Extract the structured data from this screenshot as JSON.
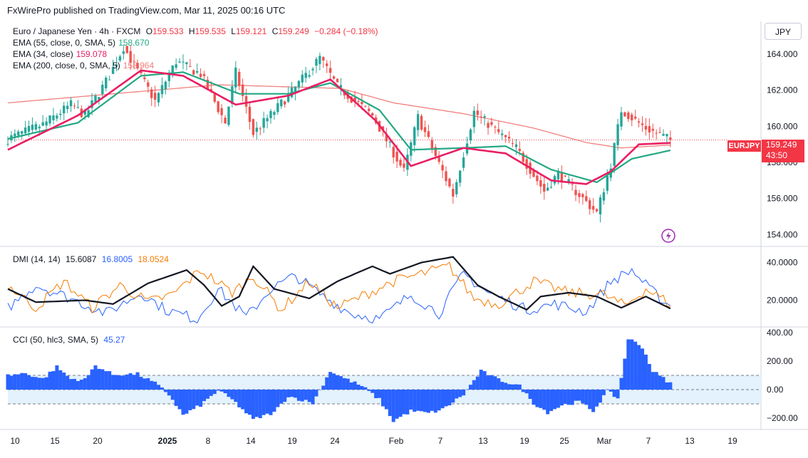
{
  "header": {
    "published": "FxWirePro published on TradingView.com, Mar 11, 2025 00:16 UTC"
  },
  "currency": "JPY",
  "legend": {
    "instrument": "Euro / Japanese Yen · 4h · FXCM",
    "o_label": "O",
    "o": "159.533",
    "h_label": "H",
    "h": "159.535",
    "l_label": "L",
    "l": "159.121",
    "c_label": "C",
    "c": "159.249",
    "change": "−0.284 (−0.18%)",
    "ema55_label": "EMA (55, close, 0, SMA, 5)",
    "ema55": "158.670",
    "ema34_label": "EMA (34, close)",
    "ema34": "159.078",
    "ema200_label": "EMA (200, close, 0, SMA, 5)",
    "ema200": "158.964",
    "dmi_label": "DMI (14, 14)",
    "dmi_adx": "15.6087",
    "dmi_plus": "16.8005",
    "dmi_minus": "18.0524",
    "cci_label": "CCI (50, hlc3, SMA, 5)",
    "cci": "45.27"
  },
  "price_tag": {
    "symbol": "EURJPY",
    "price": "159.249",
    "countdown": "43:50"
  },
  "colors": {
    "up": "#26a69a",
    "down": "#ef5350",
    "ema34": "#e91e63",
    "ema55": "#22a883",
    "ema200": "#f0807d",
    "adx": "#131722",
    "plus_di": "#2962ff",
    "minus_di": "#f57c00",
    "cci": "#2962ff",
    "band": "#e3f2fd"
  },
  "chart_data": [
    {
      "type": "candlestick",
      "title": "Euro / Japanese Yen · 4h · FXCM",
      "ylim": [
        153.5,
        165.5
      ],
      "yticks": [
        "164.000",
        "162.000",
        "160.000",
        "158.000",
        "156.000",
        "154.000"
      ],
      "xticks": [
        "10",
        "15",
        "20",
        "2025",
        "8",
        "14",
        "19",
        "24",
        "Feb",
        "7",
        "13",
        "19",
        "25",
        "Mar",
        "7",
        "13",
        "19"
      ],
      "last": 159.249,
      "anchors": [
        [
          0,
          159.3
        ],
        [
          10,
          160.1
        ],
        [
          18,
          161.2
        ],
        [
          22,
          160.6
        ],
        [
          29,
          162.8
        ],
        [
          33,
          164.4
        ],
        [
          42,
          161.4
        ],
        [
          48,
          163.6
        ],
        [
          55,
          162.9
        ],
        [
          62,
          160.2
        ],
        [
          65,
          163.0
        ],
        [
          70,
          159.6
        ],
        [
          81,
          161.9
        ],
        [
          89,
          163.8
        ],
        [
          94,
          162.2
        ],
        [
          104,
          160.6
        ],
        [
          113,
          157.5
        ],
        [
          117,
          160.5
        ],
        [
          127,
          156.2
        ],
        [
          133,
          160.8
        ],
        [
          145,
          158.8
        ],
        [
          153,
          156.4
        ],
        [
          157,
          157.4
        ],
        [
          162,
          156.4
        ],
        [
          168,
          155.2
        ],
        [
          172,
          157.9
        ],
        [
          175,
          160.9
        ],
        [
          182,
          159.9
        ],
        [
          189,
          159.249
        ]
      ],
      "ema34": [
        [
          0,
          158.7
        ],
        [
          20,
          160.6
        ],
        [
          38,
          163.1
        ],
        [
          50,
          162.8
        ],
        [
          65,
          161.2
        ],
        [
          80,
          161.7
        ],
        [
          92,
          162.6
        ],
        [
          105,
          160.3
        ],
        [
          115,
          157.8
        ],
        [
          130,
          158.8
        ],
        [
          142,
          158.5
        ],
        [
          155,
          157.0
        ],
        [
          165,
          156.8
        ],
        [
          172,
          157.5
        ],
        [
          180,
          159.0
        ],
        [
          189,
          159.078
        ]
      ],
      "ema55": [
        [
          0,
          159.3
        ],
        [
          20,
          160.2
        ],
        [
          38,
          162.8
        ],
        [
          50,
          163.0
        ],
        [
          66,
          161.8
        ],
        [
          80,
          161.8
        ],
        [
          92,
          162.4
        ],
        [
          106,
          160.9
        ],
        [
          115,
          158.7
        ],
        [
          130,
          158.8
        ],
        [
          142,
          158.9
        ],
        [
          155,
          157.6
        ],
        [
          168,
          156.9
        ],
        [
          178,
          158.2
        ],
        [
          189,
          158.67
        ]
      ],
      "ema200": [
        [
          0,
          161.3
        ],
        [
          30,
          161.8
        ],
        [
          60,
          162.3
        ],
        [
          95,
          162.1
        ],
        [
          110,
          161.3
        ],
        [
          130,
          160.7
        ],
        [
          150,
          159.9
        ],
        [
          165,
          159.1
        ],
        [
          175,
          158.8
        ],
        [
          189,
          158.964
        ]
      ]
    },
    {
      "type": "line",
      "title": "DMI (14, 14)",
      "ylim": [
        7,
        47
      ],
      "yticks": [
        "40.0000",
        "20.0000"
      ],
      "series": [
        {
          "name": "ADX",
          "values": [
            [
              0,
              26
            ],
            [
              8,
              19
            ],
            [
              22,
              20
            ],
            [
              30,
              18
            ],
            [
              40,
              29
            ],
            [
              51,
              36
            ],
            [
              56,
              28
            ],
            [
              61,
              17
            ],
            [
              66,
              22
            ],
            [
              70,
              38
            ],
            [
              76,
              26
            ],
            [
              86,
              21
            ],
            [
              94,
              30
            ],
            [
              104,
              38
            ],
            [
              109,
              34
            ],
            [
              118,
              40
            ],
            [
              127,
              43
            ],
            [
              134,
              28
            ],
            [
              140,
              22
            ],
            [
              148,
              15
            ],
            [
              152,
              22
            ],
            [
              160,
              24
            ],
            [
              168,
              22
            ],
            [
              175,
              16
            ],
            [
              182,
              22
            ],
            [
              189,
              15.6
            ]
          ]
        },
        {
          "name": "+DI",
          "values": [
            [
              0,
              16
            ],
            [
              8,
              28
            ],
            [
              18,
              21
            ],
            [
              28,
              13
            ],
            [
              38,
              24
            ],
            [
              45,
              15
            ],
            [
              54,
              10
            ],
            [
              60,
              26
            ],
            [
              68,
              11
            ],
            [
              75,
              26
            ],
            [
              82,
              33
            ],
            [
              90,
              22
            ],
            [
              98,
              13
            ],
            [
              106,
              10
            ],
            [
              115,
              23
            ],
            [
              123,
              13
            ],
            [
              130,
              34
            ],
            [
              137,
              24
            ],
            [
              148,
              15
            ],
            [
              156,
              18
            ],
            [
              165,
              14
            ],
            [
              172,
              30
            ],
            [
              178,
              36
            ],
            [
              183,
              26
            ],
            [
              189,
              16.8
            ]
          ]
        },
        {
          "name": "−DI",
          "values": [
            [
              0,
              28
            ],
            [
              8,
              16
            ],
            [
              16,
              30
            ],
            [
              24,
              16
            ],
            [
              32,
              28
            ],
            [
              40,
              19
            ],
            [
              47,
              23
            ],
            [
              55,
              36
            ],
            [
              64,
              24
            ],
            [
              70,
              33
            ],
            [
              78,
              15
            ],
            [
              86,
              30
            ],
            [
              94,
              16
            ],
            [
              102,
              23
            ],
            [
              110,
              30
            ],
            [
              118,
              34
            ],
            [
              126,
              38
            ],
            [
              133,
              21
            ],
            [
              140,
              18
            ],
            [
              150,
              30
            ],
            [
              160,
              24
            ],
            [
              170,
              23
            ],
            [
              176,
              17
            ],
            [
              182,
              26
            ],
            [
              189,
              18.1
            ]
          ]
        }
      ]
    },
    {
      "type": "bar",
      "title": "CCI (50, hlc3, SMA, 5)",
      "ylim": [
        -250,
        400
      ],
      "yticks": [
        "400.00",
        "200.00",
        "0.00",
        "−200.00"
      ],
      "bands": [
        100,
        0,
        -100
      ],
      "values": [
        [
          0,
          100
        ],
        [
          5,
          115
        ],
        [
          10,
          75
        ],
        [
          14,
          160
        ],
        [
          18,
          75
        ],
        [
          22,
          70
        ],
        [
          25,
          170
        ],
        [
          30,
          105
        ],
        [
          37,
          110
        ],
        [
          42,
          45
        ],
        [
          46,
          -35
        ],
        [
          50,
          -180
        ],
        [
          55,
          -110
        ],
        [
          60,
          -5
        ],
        [
          64,
          -70
        ],
        [
          70,
          -210
        ],
        [
          76,
          -160
        ],
        [
          80,
          -45
        ],
        [
          87,
          -95
        ],
        [
          92,
          130
        ],
        [
          96,
          80
        ],
        [
          101,
          25
        ],
        [
          106,
          -70
        ],
        [
          110,
          -220
        ],
        [
          115,
          -150
        ],
        [
          120,
          -165
        ],
        [
          124,
          -140
        ],
        [
          130,
          -35
        ],
        [
          135,
          130
        ],
        [
          140,
          70
        ],
        [
          146,
          25
        ],
        [
          150,
          -95
        ],
        [
          154,
          -160
        ],
        [
          158,
          -110
        ],
        [
          163,
          -85
        ],
        [
          167,
          -150
        ],
        [
          171,
          -10
        ],
        [
          174,
          -60
        ],
        [
          177,
          360
        ],
        [
          181,
          300
        ],
        [
          184,
          130
        ],
        [
          189,
          45.27
        ]
      ]
    }
  ]
}
